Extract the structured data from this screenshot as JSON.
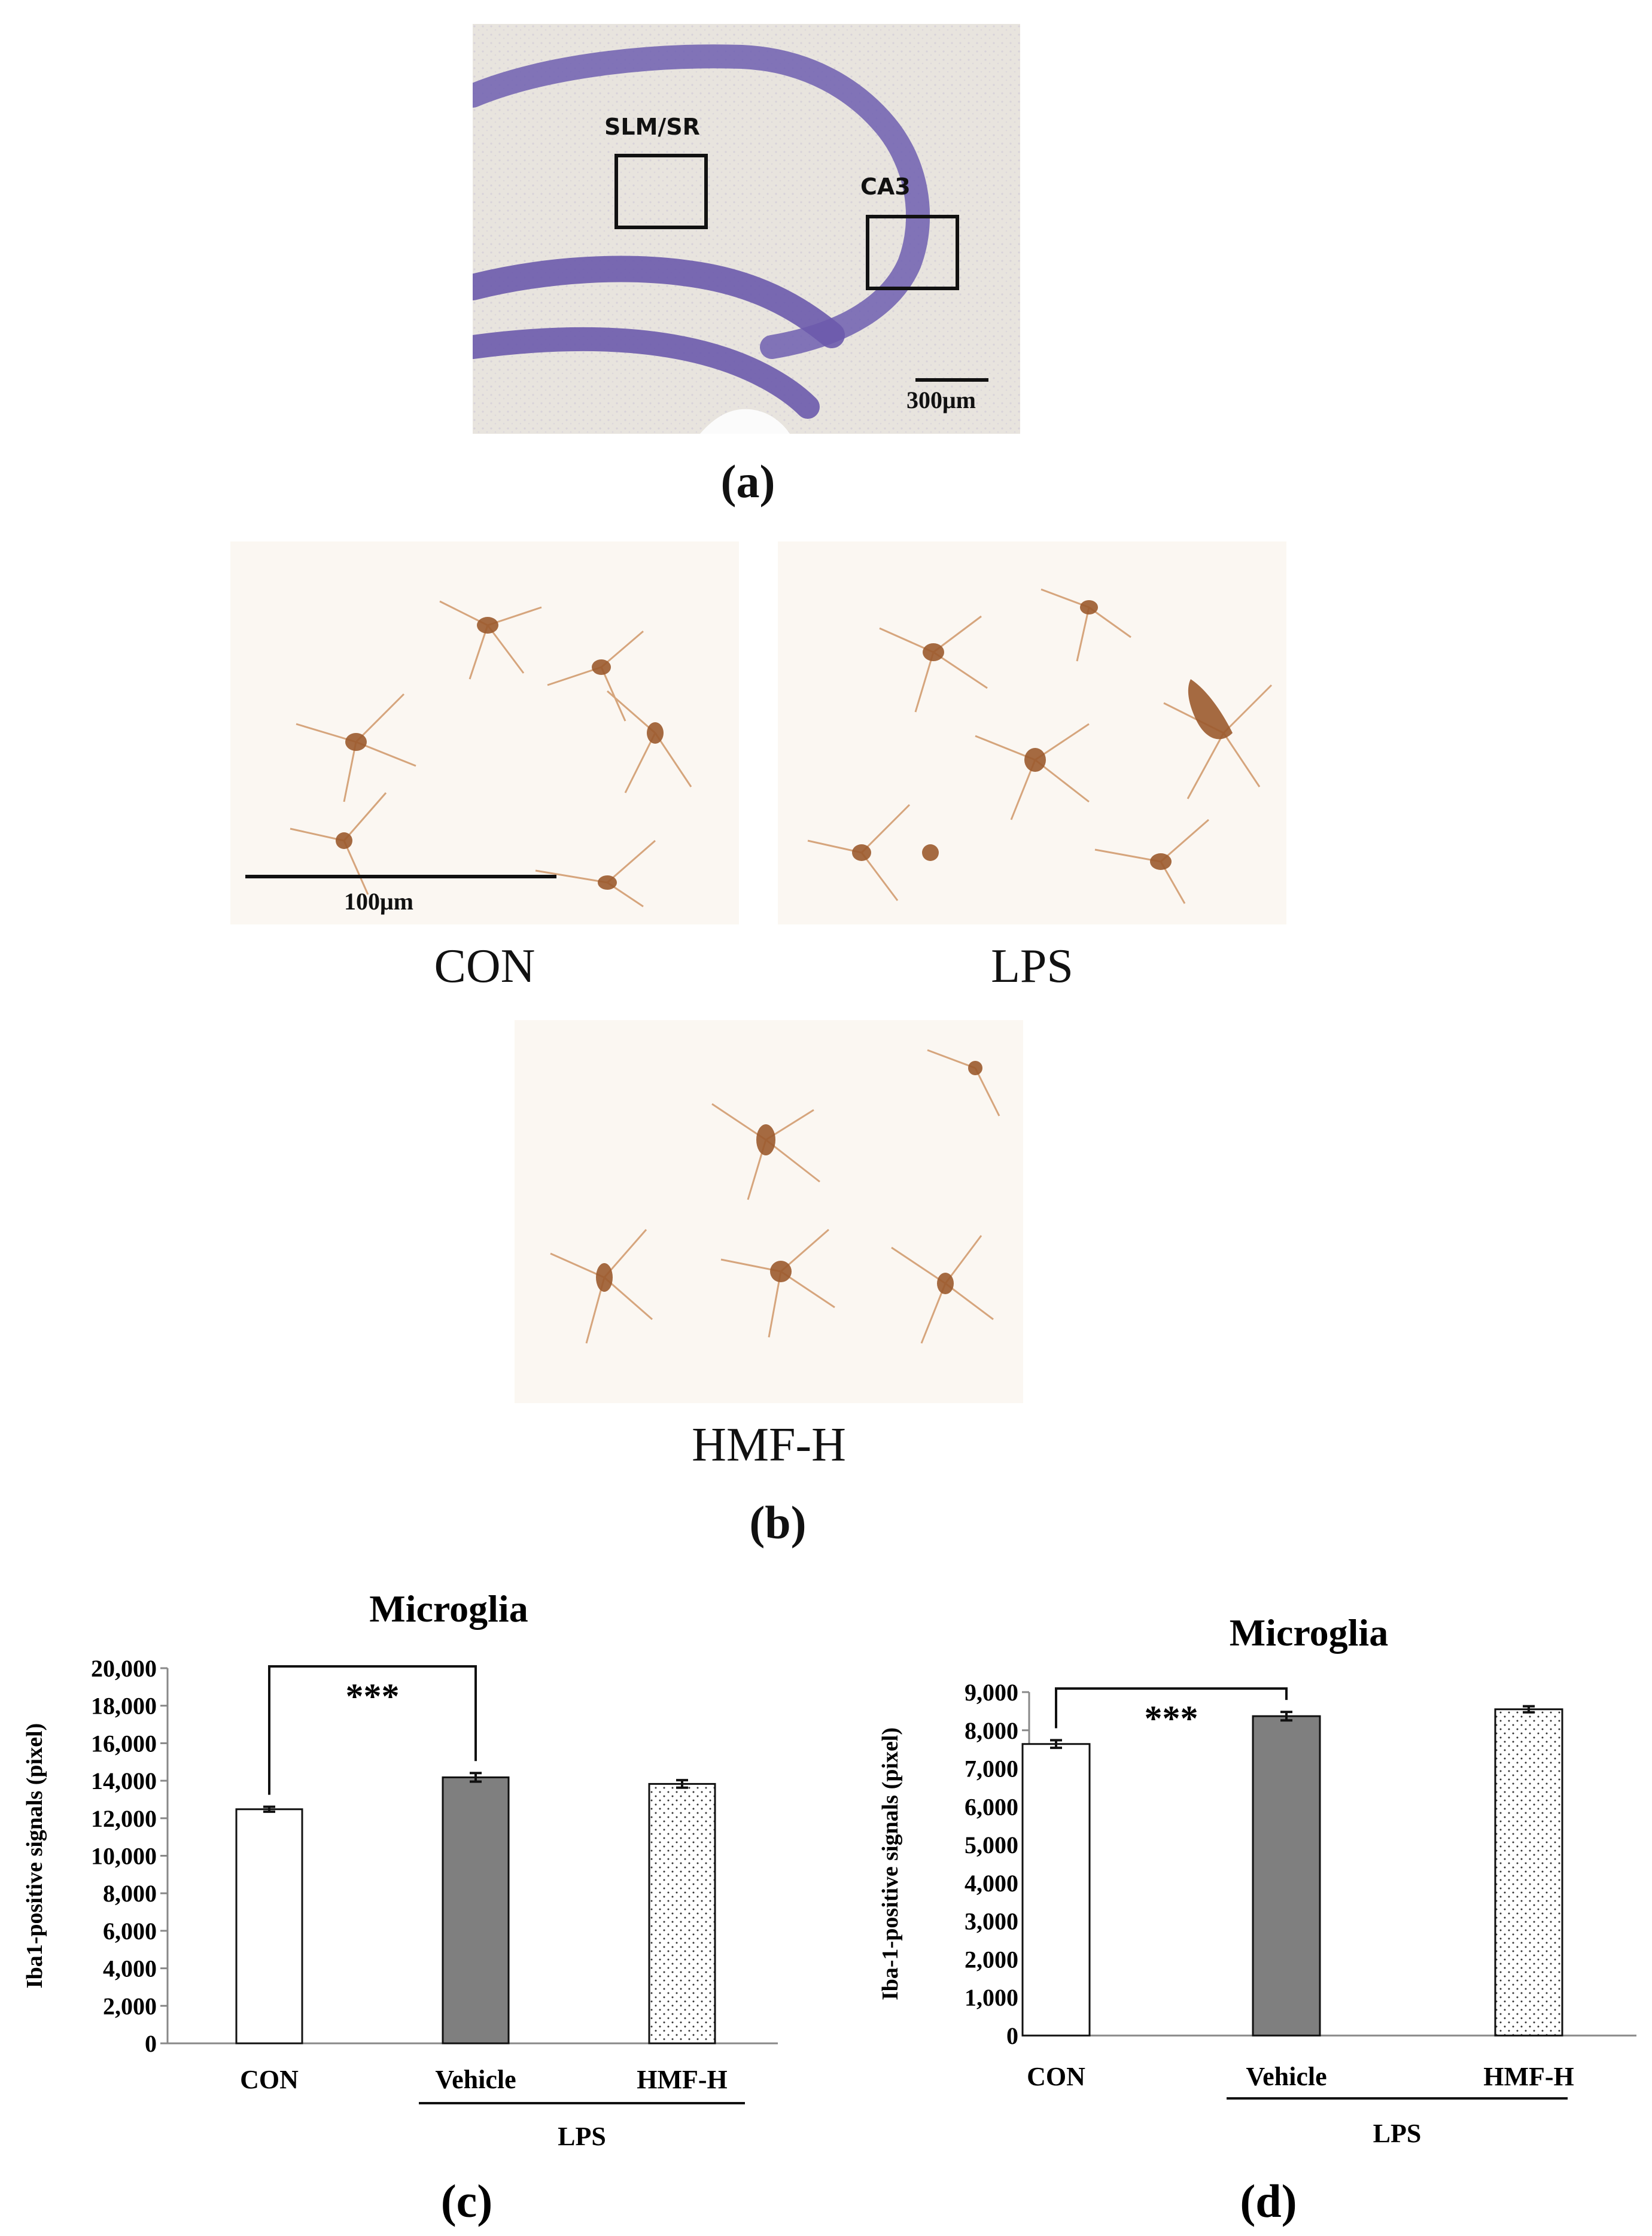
{
  "panel_a": {
    "label": "(a)",
    "regions": [
      "SLM/SR",
      "CA3"
    ],
    "scale_bar": "300μm"
  },
  "panel_b": {
    "label": "(b)",
    "scale_bar": "100μm",
    "conditions": [
      "CON",
      "LPS",
      "HMF-H"
    ]
  },
  "chart_data": [
    {
      "type": "bar",
      "panel": "(c)",
      "title": "Microglia",
      "ylabel": "Iba1-positive signals (pixel)",
      "xlabel": "",
      "categories": [
        "CON",
        "Vehicle",
        "HMF-H"
      ],
      "group_label": "LPS",
      "values": [
        12480,
        14180,
        13830
      ],
      "errors": [
        130,
        230,
        200
      ],
      "ylim": [
        0,
        20000
      ],
      "yticks": [
        "0",
        "2,000",
        "4,000",
        "6,000",
        "8,000",
        "10,000",
        "12,000",
        "14,000",
        "16,000",
        "18,000",
        "20,000"
      ],
      "significance": "***",
      "bar_styles": [
        "white",
        "gray",
        "dotted"
      ],
      "colors": {
        "gray": "#7f7f7f",
        "line": "#111111"
      }
    },
    {
      "type": "bar",
      "panel": "(d)",
      "title": "Microglia",
      "ylabel": "Iba-1-positive signals (pixel)",
      "xlabel": "",
      "categories": [
        "CON",
        "Vehicle",
        "HMF-H"
      ],
      "group_label": "LPS",
      "values": [
        7640,
        8370,
        8550
      ],
      "errors": [
        100,
        110,
        80
      ],
      "ylim": [
        0,
        9000
      ],
      "yticks": [
        "0",
        "1,000",
        "2,000",
        "3,000",
        "4,000",
        "5,000",
        "6,000",
        "7,000",
        "8,000",
        "9,000"
      ],
      "significance": "***",
      "bar_styles": [
        "white",
        "gray",
        "dotted"
      ],
      "colors": {
        "gray": "#7f7f7f",
        "line": "#111111"
      }
    }
  ]
}
